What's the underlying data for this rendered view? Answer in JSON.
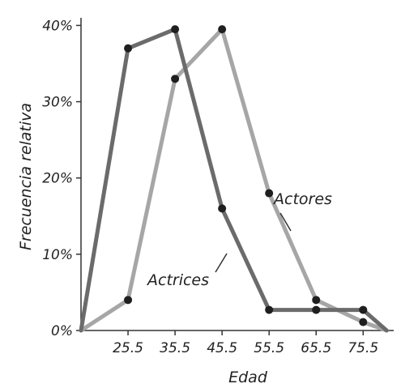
{
  "chart_data": {
    "type": "line",
    "xlabel": "Edad",
    "ylabel": "Frecuencia relativa",
    "x_tick_labels": [
      "25.5",
      "35.5",
      "45.5",
      "55.5",
      "65.5",
      "75.5"
    ],
    "y_tick_labels": [
      "0%",
      "10%",
      "20%",
      "30%",
      "40%"
    ],
    "xlim": [
      15.5,
      82
    ],
    "ylim": [
      0,
      41
    ],
    "grid": false,
    "series": [
      {
        "name": "Actrices",
        "color": "#6b6b6b",
        "x": [
          15.5,
          25.5,
          35.5,
          45.5,
          55.5,
          65.5,
          75.5
        ],
        "y": [
          0,
          37,
          39.5,
          16,
          2.7,
          2.7,
          2.7
        ],
        "end": [
          80.5,
          0
        ]
      },
      {
        "name": "Actores",
        "color": "#a6a6a6",
        "x": [
          15.5,
          25.5,
          35.5,
          45.5,
          55.5,
          65.5,
          75.5
        ],
        "y": [
          0,
          4,
          33,
          39.5,
          18,
          4,
          1.1
        ],
        "end": [
          80.5,
          0
        ]
      }
    ],
    "annotations": [
      {
        "text": "Actores",
        "series": "Actores"
      },
      {
        "text": "Actrices",
        "series": "Actrices"
      }
    ]
  }
}
